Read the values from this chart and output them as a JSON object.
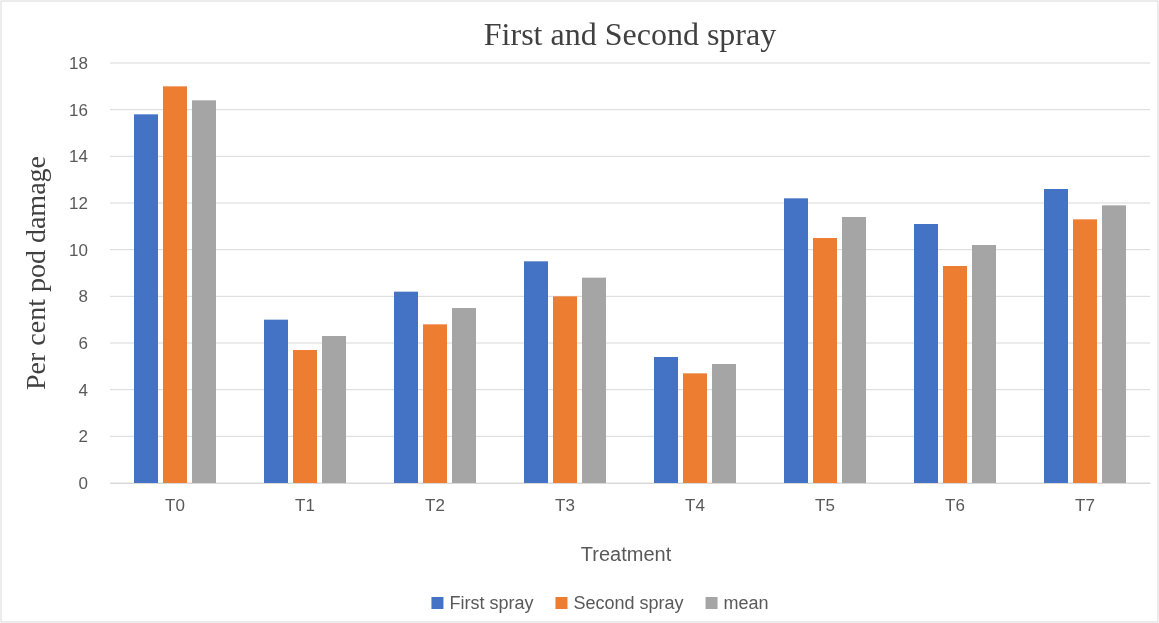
{
  "chart_data": {
    "type": "bar",
    "title": "First and Second spray",
    "xlabel": "Treatment",
    "ylabel": "Per cent pod damage",
    "categories": [
      "T0",
      "T1",
      "T2",
      "T3",
      "T4",
      "T5",
      "T6",
      "T7"
    ],
    "series": [
      {
        "name": "First spray",
        "color": "#4472c4",
        "values": [
          15.8,
          7.0,
          8.2,
          9.5,
          5.4,
          12.2,
          11.1,
          12.6
        ]
      },
      {
        "name": "Second spray",
        "color": "#ed7d31",
        "values": [
          17.0,
          5.7,
          6.8,
          8.0,
          4.7,
          10.5,
          9.3,
          11.3
        ]
      },
      {
        "name": "mean",
        "color": "#a5a5a5",
        "values": [
          16.4,
          6.3,
          7.5,
          8.8,
          5.1,
          11.4,
          10.2,
          11.9
        ]
      }
    ],
    "ylim": [
      0,
      18
    ],
    "yticks": [
      0,
      2,
      4,
      6,
      8,
      10,
      12,
      14,
      16,
      18
    ],
    "grid": "y",
    "legend": "bottom"
  }
}
